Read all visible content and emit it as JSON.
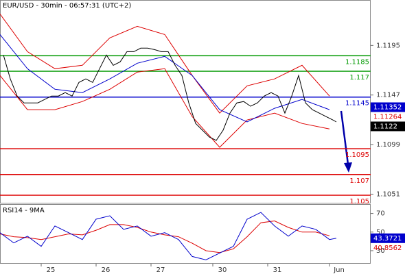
{
  "chart_data": [
    {
      "type": "line",
      "title": "EUR/USD - 30min - 06:57:31 (UTC+2)",
      "xlim": [
        0,
        108
      ],
      "ylim": [
        1.1042,
        1.1239
      ],
      "yticks": [
        1.1195,
        1.1147,
        1.1099,
        1.1051
      ],
      "levels": [
        {
          "value": 1.1185,
          "color": "#009900"
        },
        {
          "value": 1.117,
          "color": "#009900"
        },
        {
          "value": 1.1145,
          "color": "#0000cc"
        },
        {
          "value": 1.1095,
          "color": "#dd0000"
        },
        {
          "value": 1.107,
          "color": "#dd0000"
        },
        {
          "value": 1.105,
          "color": "#dd0000"
        }
      ],
      "tags": [
        {
          "value": 1.11352,
          "color": "#0000cc",
          "boxed": true
        },
        {
          "value": 1.11264,
          "color": "#dd0000",
          "boxed": false
        },
        {
          "value": 1.1122,
          "color": "#000000",
          "boxed": true
        }
      ],
      "series": [
        {
          "color": "#dd0000",
          "x": [
            0,
            8,
            16,
            24,
            32,
            40,
            48,
            56,
            64,
            72,
            80,
            88,
            96
          ],
          "values": [
            1.12255,
            1.1189,
            1.11725,
            1.11758,
            1.12023,
            1.12135,
            1.12056,
            1.11659,
            1.11295,
            1.11559,
            1.11626,
            1.11758,
            1.1146
          ]
        },
        {
          "color": "#dd0000",
          "x": [
            0,
            8,
            16,
            24,
            32,
            40,
            48,
            56,
            64,
            72,
            80,
            88,
            96
          ],
          "values": [
            1.11659,
            1.11328,
            1.11328,
            1.11407,
            1.11526,
            1.11692,
            1.11725,
            1.11261,
            1.10964,
            1.11228,
            1.11295,
            1.11195,
            1.11142
          ]
        },
        {
          "color": "#0000cc",
          "x": [
            0,
            8,
            16,
            24,
            32,
            40,
            48,
            56,
            64,
            72,
            80,
            88,
            96
          ],
          "values": [
            1.12056,
            1.11725,
            1.11526,
            1.11493,
            1.11626,
            1.11778,
            1.11844,
            1.11659,
            1.11328,
            1.11209,
            1.11341,
            1.11427,
            1.11328
          ]
        },
        {
          "color": "#000000",
          "x": [
            1,
            3,
            5,
            7,
            9,
            11,
            13,
            15,
            17,
            19,
            21,
            23,
            25,
            27,
            29,
            31,
            33,
            35,
            37,
            39,
            41,
            43,
            45,
            47,
            49,
            51,
            53,
            55,
            57,
            59,
            61,
            63,
            65,
            67,
            69,
            71,
            73,
            75,
            77,
            79,
            81,
            83,
            85,
            87,
            89,
            91,
            93,
            95,
            97,
            98
          ],
          "values": [
            1.11857,
            1.11626,
            1.1146,
            1.11394,
            1.11394,
            1.11394,
            1.11427,
            1.1146,
            1.1146,
            1.11493,
            1.1146,
            1.11592,
            1.11626,
            1.11592,
            1.11725,
            1.11857,
            1.11758,
            1.11791,
            1.1189,
            1.1189,
            1.11924,
            1.11924,
            1.1191,
            1.1189,
            1.1189,
            1.11758,
            1.11659,
            1.11394,
            1.11195,
            1.11129,
            1.11063,
            1.1103,
            1.11129,
            1.11295,
            1.11394,
            1.11407,
            1.11361,
            1.11394,
            1.1146,
            1.11493,
            1.1146,
            1.11295,
            1.1146,
            1.11659,
            1.11394,
            1.11328,
            1.11295,
            1.11261,
            1.11228,
            1.11209
          ]
        }
      ]
    },
    {
      "type": "line",
      "title": "RSI14 - 9MA",
      "xlim": [
        0,
        108
      ],
      "ylim": [
        16,
        80
      ],
      "yticks": [
        70,
        50,
        30
      ],
      "xticks": [
        {
          "value": 12,
          "label": "25"
        },
        {
          "value": 28,
          "label": "26"
        },
        {
          "value": 44,
          "label": "27"
        },
        {
          "value": 62,
          "label": "30"
        },
        {
          "value": 78,
          "label": "31"
        },
        {
          "value": 96,
          "label": "Jun"
        }
      ],
      "tags": [
        {
          "value": 43.3721,
          "color": "#0000cc",
          "boxed": true
        },
        {
          "value": 40.8562,
          "color": "#dd0000",
          "boxed": false
        }
      ],
      "series": [
        {
          "color": "#dd0000",
          "x": [
            0,
            4,
            8,
            12,
            16,
            20,
            24,
            28,
            32,
            36,
            40,
            44,
            48,
            52,
            56,
            60,
            64,
            68,
            72,
            76,
            80,
            84,
            88,
            92,
            96
          ],
          "values": [
            48,
            45,
            44,
            42,
            45,
            48,
            47,
            52,
            58,
            58,
            55,
            50,
            47,
            45,
            38,
            30,
            28,
            32,
            45,
            60,
            62,
            55,
            50,
            50,
            46
          ]
        },
        {
          "color": "#0000cc",
          "x": [
            0,
            4,
            8,
            12,
            16,
            20,
            24,
            28,
            32,
            36,
            40,
            44,
            48,
            52,
            56,
            60,
            64,
            68,
            72,
            76,
            80,
            84,
            88,
            92,
            96,
            98
          ],
          "values": [
            49.3,
            38.4,
            45.6,
            34.7,
            56.5,
            49.3,
            42,
            63.8,
            67.5,
            52.9,
            56.5,
            45.6,
            49.3,
            42,
            23.8,
            20.2,
            27.5,
            34.7,
            63.8,
            71.1,
            56.5,
            45.6,
            56.5,
            52.9,
            42,
            43.4
          ]
        }
      ]
    }
  ]
}
